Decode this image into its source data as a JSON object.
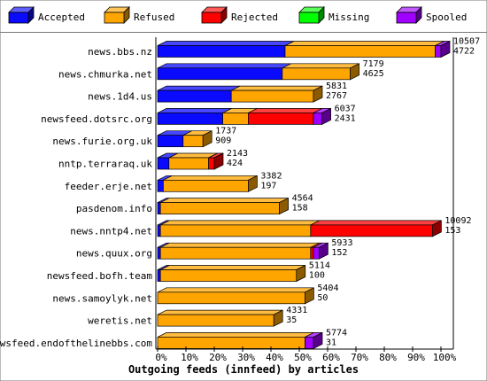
{
  "chart_data": {
    "type": "bar",
    "stacked": true,
    "orientation": "horizontal",
    "title": "Outgoing feeds (innfeed) by articles",
    "xlim": [
      0,
      100
    ],
    "x_ticks": [
      "0%",
      "10%",
      "20%",
      "30%",
      "40%",
      "50%",
      "60%",
      "70%",
      "80%",
      "90%",
      "100%"
    ],
    "legend_position": "top",
    "series": [
      {
        "name": "Accepted",
        "color": "#0a0aff"
      },
      {
        "name": "Refused",
        "color": "#ffa500"
      },
      {
        "name": "Rejected",
        "color": "#ff0000"
      },
      {
        "name": "Missing",
        "color": "#00ff00"
      },
      {
        "name": "Spooled",
        "color": "#a000ff"
      }
    ],
    "categories": [
      {
        "label": "news.bbs.nz",
        "total": "10507",
        "accepted": "4722",
        "pct": [
          45,
          53,
          0,
          0,
          2
        ]
      },
      {
        "label": "news.chmurka.net",
        "total": "7179",
        "accepted": "4625",
        "pct": [
          44,
          24,
          0,
          0,
          0
        ]
      },
      {
        "label": "news.1d4.us",
        "total": "5831",
        "accepted": "2767",
        "pct": [
          26,
          29,
          0,
          0,
          0
        ]
      },
      {
        "label": "newsfeed.dotsrc.org",
        "total": "6037",
        "accepted": "2431",
        "pct": [
          23,
          9,
          23,
          0,
          3
        ]
      },
      {
        "label": "news.furie.org.uk",
        "total": "1737",
        "accepted": "909",
        "pct": [
          9,
          7,
          0,
          0,
          0
        ]
      },
      {
        "label": "nntp.terraraq.uk",
        "total": "2143",
        "accepted": "424",
        "pct": [
          4,
          14,
          2,
          0,
          0
        ]
      },
      {
        "label": "feeder.erje.net",
        "total": "3382",
        "accepted": "197",
        "pct": [
          2,
          30,
          0,
          0,
          0
        ]
      },
      {
        "label": "pasdenom.info",
        "total": "4564",
        "accepted": "158",
        "pct": [
          1,
          42,
          0,
          0,
          0
        ]
      },
      {
        "label": "news.nntp4.net",
        "total": "10092",
        "accepted": "153",
        "pct": [
          1,
          53,
          43,
          0,
          0
        ]
      },
      {
        "label": "news.quux.org",
        "total": "5933",
        "accepted": "152",
        "pct": [
          1,
          53,
          1,
          0,
          2
        ]
      },
      {
        "label": "newsfeed.bofh.team",
        "total": "5114",
        "accepted": "100",
        "pct": [
          1,
          48,
          0,
          0,
          0
        ]
      },
      {
        "label": "news.samoylyk.net",
        "total": "5404",
        "accepted": "50",
        "pct": [
          0,
          52,
          0,
          0,
          0
        ]
      },
      {
        "label": "weretis.net",
        "total": "4331",
        "accepted": "35",
        "pct": [
          0,
          41,
          0,
          0,
          0
        ]
      },
      {
        "label": "newsfeed.endofthelinebbs.com",
        "total": "5774",
        "accepted": "31",
        "pct": [
          0,
          52,
          0,
          0,
          3
        ]
      }
    ]
  }
}
